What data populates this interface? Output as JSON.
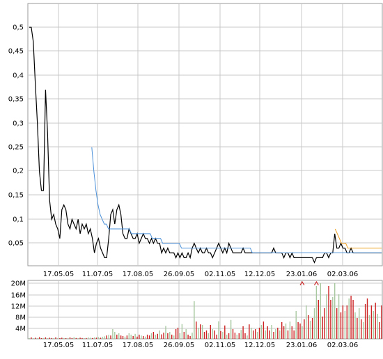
{
  "chart_data": [
    {
      "type": "line",
      "title": "",
      "xlabel": "",
      "ylabel": "",
      "x_ticks": [
        "17.05.05",
        "11.07.05",
        "17.08.05",
        "26.09.05",
        "02.11.05",
        "12.12.05",
        "23.01.06",
        "02.03.06"
      ],
      "y_ticks": [
        "0,05",
        "0,1",
        "0,15",
        "0,2",
        "0,25",
        "0,3",
        "0,35",
        "0,4",
        "0,45",
        "0,5"
      ],
      "ylim": [
        0.01,
        0.54
      ],
      "grid": true,
      "series": [
        {
          "color": "#000000",
          "values": [
            0.5,
            0.5,
            0.47,
            0.38,
            0.3,
            0.2,
            0.16,
            0.16,
            0.37,
            0.28,
            0.14,
            0.1,
            0.11,
            0.09,
            0.08,
            0.06,
            0.12,
            0.13,
            0.12,
            0.09,
            0.08,
            0.1,
            0.09,
            0.08,
            0.1,
            0.07,
            0.09,
            0.08,
            0.09,
            0.07,
            0.08,
            0.06,
            0.03,
            0.05,
            0.06,
            0.04,
            0.03,
            0.02,
            0.02,
            0.06,
            0.11,
            0.12,
            0.09,
            0.12,
            0.13,
            0.11,
            0.07,
            0.06,
            0.06,
            0.08,
            0.07,
            0.06,
            0.06,
            0.07,
            0.05,
            0.06,
            0.07,
            0.06,
            0.06,
            0.05,
            0.06,
            0.05,
            0.06,
            0.05,
            0.05,
            0.03,
            0.04,
            0.03,
            0.04,
            0.03,
            0.03,
            0.03,
            0.02,
            0.03,
            0.02,
            0.03,
            0.02,
            0.02,
            0.03,
            0.02,
            0.04,
            0.05,
            0.04,
            0.03,
            0.04,
            0.03,
            0.03,
            0.04,
            0.03,
            0.03,
            0.02,
            0.03,
            0.04,
            0.05,
            0.04,
            0.03,
            0.04,
            0.03,
            0.05,
            0.04,
            0.03,
            0.03,
            0.03,
            0.03,
            0.03,
            0.04,
            0.03,
            0.03,
            0.03,
            0.03,
            0.03,
            0.03,
            0.03,
            0.03,
            0.03,
            0.03,
            0.03,
            0.03,
            0.03,
            0.03,
            0.04,
            0.03,
            0.03,
            0.03,
            0.03,
            0.02,
            0.03,
            0.03,
            0.02,
            0.03,
            0.02,
            0.02,
            0.02,
            0.02,
            0.02,
            0.02,
            0.02,
            0.02,
            0.02,
            0.02,
            0.01,
            0.02,
            0.02,
            0.02,
            0.02,
            0.03,
            0.03,
            0.02,
            0.03,
            0.03,
            0.07,
            0.04,
            0.04,
            0.05,
            0.04,
            0.04,
            0.03,
            0.03,
            0.04,
            0.03,
            0.03,
            0.03,
            0.03,
            0.03,
            0.03,
            0.03,
            0.03,
            0.03,
            0.03,
            0.03,
            0.03,
            0.03,
            0.03,
            0.03
          ]
        },
        {
          "color": "#4a90d9",
          "values": [
            null,
            null,
            null,
            null,
            null,
            null,
            null,
            null,
            null,
            null,
            null,
            null,
            null,
            null,
            null,
            null,
            null,
            null,
            null,
            null,
            null,
            null,
            null,
            null,
            null,
            null,
            null,
            null,
            null,
            null,
            0.25,
            0.2,
            0.16,
            0.13,
            0.11,
            0.1,
            0.09,
            0.09,
            0.08,
            0.08,
            0.08,
            0.08,
            0.08,
            0.08,
            0.08,
            0.08,
            0.08,
            0.08,
            0.08,
            0.07,
            0.07,
            0.07,
            0.07,
            0.07,
            0.07,
            0.07,
            0.07,
            0.07,
            0.07,
            0.06,
            0.06,
            0.06,
            0.06,
            0.06,
            0.05,
            0.05,
            0.05,
            0.05,
            0.05,
            0.05,
            0.05,
            0.05,
            0.05,
            0.04,
            0.04,
            0.04,
            0.04,
            0.04,
            0.04,
            0.04,
            0.04,
            0.04,
            0.04,
            0.04,
            0.04,
            0.04,
            0.04,
            0.04,
            0.04,
            0.04,
            0.04,
            0.04,
            0.04,
            0.04,
            0.04,
            0.04,
            0.04,
            0.04,
            0.04,
            0.04,
            0.04,
            0.04,
            0.04,
            0.04,
            0.04,
            0.04,
            0.04,
            0.03,
            0.03,
            0.03,
            0.03,
            0.03,
            0.03,
            0.03,
            0.03,
            0.03,
            0.03,
            0.03,
            0.03,
            0.03,
            0.03,
            0.03,
            0.03,
            0.03,
            0.03,
            0.03,
            0.03,
            0.03,
            0.03,
            0.03,
            0.03,
            0.03,
            0.03,
            0.03,
            0.03,
            0.03,
            0.03,
            0.03,
            0.03,
            0.03,
            0.03,
            0.03,
            0.03,
            0.03,
            0.03,
            0.03,
            0.03,
            0.03,
            0.03,
            0.03,
            0.03,
            0.03,
            0.03,
            0.03,
            0.03,
            0.03,
            0.03,
            0.03,
            0.03,
            0.03,
            0.03,
            0.03,
            0.03,
            0.03,
            0.03,
            0.03,
            0.03,
            0.03,
            0.03,
            0.03
          ]
        },
        {
          "color": "#f0a020",
          "values": [
            null,
            null,
            null,
            null,
            null,
            null,
            null,
            null,
            null,
            null,
            null,
            null,
            null,
            null,
            null,
            null,
            null,
            null,
            null,
            null,
            null,
            null,
            null,
            null,
            null,
            null,
            null,
            null,
            null,
            null,
            null,
            null,
            null,
            null,
            null,
            null,
            null,
            null,
            null,
            null,
            null,
            null,
            null,
            null,
            null,
            null,
            null,
            null,
            null,
            null,
            null,
            null,
            null,
            null,
            null,
            null,
            null,
            null,
            null,
            null,
            null,
            null,
            null,
            null,
            null,
            null,
            null,
            null,
            null,
            null,
            null,
            null,
            null,
            null,
            null,
            null,
            null,
            null,
            null,
            null,
            null,
            null,
            null,
            null,
            null,
            null,
            null,
            null,
            null,
            null,
            null,
            null,
            null,
            null,
            null,
            null,
            null,
            null,
            null,
            null,
            null,
            null,
            null,
            null,
            null,
            null,
            null,
            null,
            null,
            null,
            null,
            null,
            null,
            null,
            null,
            null,
            null,
            null,
            null,
            null,
            null,
            null,
            null,
            null,
            null,
            null,
            null,
            null,
            null,
            null,
            null,
            null,
            null,
            null,
            null,
            null,
            null,
            null,
            null,
            null,
            null,
            null,
            null,
            null,
            null,
            0.08,
            0.07,
            0.06,
            0.05,
            0.05,
            0.05,
            0.04,
            0.04,
            0.04,
            0.04,
            0.04,
            0.04,
            0.04,
            0.04,
            0.04,
            0.04,
            0.04,
            0.04,
            0.04,
            0.04,
            0.04,
            0.04,
            0.04
          ]
        }
      ]
    },
    {
      "type": "bar",
      "title": "",
      "xlabel": "",
      "ylabel": "",
      "x_ticks": [
        "17.05.05",
        "11.07.05",
        "17.08.05",
        "26.09.05",
        "02.11.05",
        "12.12.05",
        "23.01.06",
        "02.03.06"
      ],
      "y_ticks": [
        "4M",
        "8M",
        "12M",
        "16M",
        "20M"
      ],
      "ylim": [
        0,
        20
      ],
      "grid": true,
      "up_color": "#a8c8a0",
      "down_color": "#cc2222",
      "values": [
        0.3,
        0.5,
        0.2,
        0.4,
        0.3,
        0.6,
        0.2,
        0.3,
        0.5,
        0.2,
        0.4,
        0.3,
        0.2,
        0.5,
        0.3,
        0.2,
        0.4,
        0.3,
        0.2,
        0.3,
        0.5,
        0.3,
        0.6,
        0.3,
        0.2,
        0.4,
        0.3,
        0.2,
        0.3,
        0.5,
        0.4,
        0.3,
        0.5,
        0.4,
        0.6,
        0.4,
        0.7,
        0.9,
        1.2,
        1.4,
        1.2,
        3.5,
        2.5,
        1.5,
        2.0,
        1.2,
        1.0,
        0.8,
        1.2,
        2.0,
        1.5,
        1.0,
        1.8,
        0.8,
        1.5,
        1.2,
        1.0,
        0.8,
        1.5,
        1.2,
        2.0,
        2.5,
        1.5,
        1.8,
        3.0,
        1.6,
        2.2,
        4.6,
        2.0,
        2.5,
        1.5,
        1.2,
        3.5,
        4.0,
        2.0,
        5.3,
        2.5,
        3.5,
        1.5,
        1.0,
        2.2,
        13.5,
        6.2,
        4.0,
        5.2,
        5.0,
        2.5,
        3.0,
        2.0,
        5.0,
        3.5,
        3.0,
        1.5,
        6.3,
        2.8,
        2.5,
        4.8,
        1.5,
        2.0,
        6.8,
        3.5,
        2.2,
        1.5,
        2.0,
        3.2,
        4.5,
        2.0,
        1.2,
        5.2,
        4.0,
        3.0,
        3.5,
        2.5,
        4.0,
        5.0,
        6.2,
        3.0,
        4.5,
        3.0,
        5.0,
        2.5,
        3.5,
        4.0,
        3.0,
        6.0,
        4.5,
        5.5,
        3.0,
        6.2,
        4.5,
        3.0,
        10.0,
        6.0,
        5.5,
        4.5,
        7.0,
        12.0,
        8.5,
        6.5,
        7.5,
        11.0,
        19.0,
        14.0,
        20.0,
        8.0,
        11.0,
        16.0,
        19.0,
        14.0,
        15.0,
        20.0,
        11.0,
        16.0,
        9.5,
        12.0,
        10.0,
        12.0,
        14.5,
        15.5,
        14.0,
        9.5,
        7.5,
        11.0,
        7.0,
        6.0,
        12.5,
        14.5,
        8.5,
        12.0,
        10.0,
        13.0,
        9.0,
        6.0,
        12.0
      ],
      "up": [
        1,
        0,
        1,
        0,
        1,
        0,
        0,
        1,
        0,
        1,
        0,
        0,
        1,
        0,
        1,
        0,
        0,
        1,
        0,
        1,
        0,
        0,
        1,
        0,
        1,
        0,
        0,
        1,
        0,
        1,
        1,
        0,
        1,
        0,
        1,
        0,
        1,
        1,
        0,
        1,
        0,
        1,
        1,
        0,
        1,
        0,
        0,
        1,
        0,
        1,
        1,
        0,
        1,
        0,
        0,
        1,
        0,
        1,
        0,
        0,
        1,
        0,
        1,
        0,
        1,
        0,
        0,
        1,
        0,
        1,
        0,
        1,
        0,
        0,
        1,
        1,
        0,
        1,
        0,
        0,
        1,
        1,
        0,
        1,
        0,
        1,
        0,
        0,
        1,
        0,
        1,
        0,
        0,
        1,
        0,
        1,
        0,
        1,
        0,
        1,
        0,
        0,
        1,
        0,
        1,
        0,
        0,
        1,
        0,
        1,
        0,
        0,
        1,
        0,
        1,
        0,
        1,
        0,
        0,
        1,
        0,
        1,
        0,
        1,
        0,
        0,
        1,
        0,
        1,
        0,
        0,
        1,
        0,
        0,
        1,
        0,
        1,
        0,
        1,
        0,
        1,
        1,
        0,
        1,
        0,
        0,
        1,
        0,
        0,
        1,
        1,
        0,
        1,
        0,
        0,
        1,
        0,
        1,
        0,
        0,
        1,
        0,
        1,
        0,
        1,
        0,
        0,
        1,
        0,
        1,
        0,
        1
      ],
      "arrows": [
        134,
        141
      ]
    }
  ]
}
